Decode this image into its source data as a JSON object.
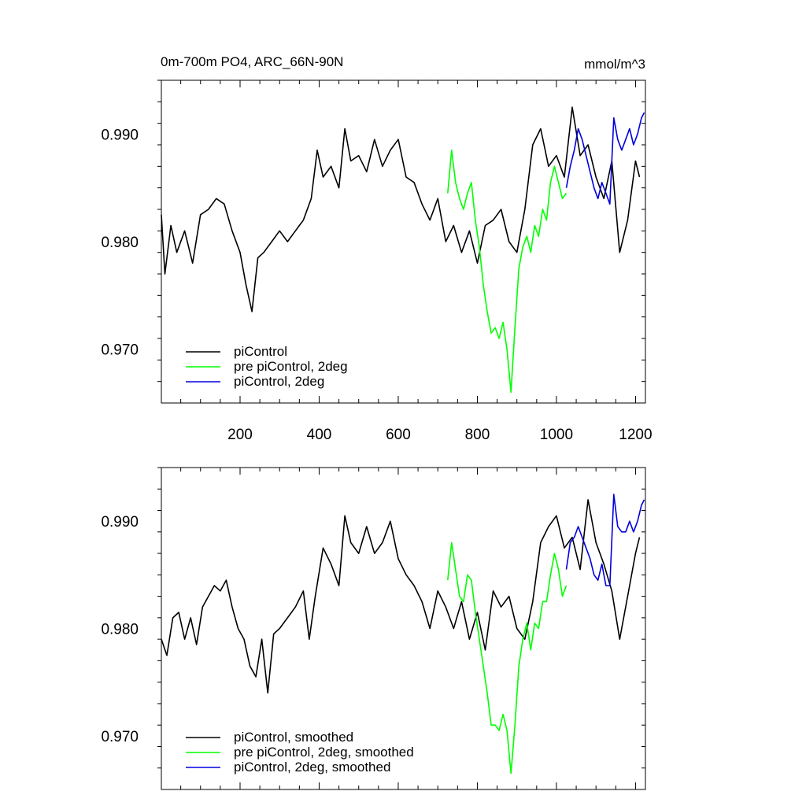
{
  "figure": {
    "title_left": "0m-700m PO4, ARC_66N-90N",
    "title_right": "mmol/m^3"
  },
  "chart_data": [
    {
      "type": "line",
      "xlim": [
        1,
        1225
      ],
      "ylim": [
        0.965,
        0.995
      ],
      "xticks": [
        200,
        400,
        600,
        800,
        1000,
        1200
      ],
      "xtick_labels": [
        "200",
        "400",
        "600",
        "800",
        "1000",
        "1200"
      ],
      "yticks": [
        0.97,
        0.98,
        0.99
      ],
      "ytick_labels": [
        "0.970",
        "0.980",
        "0.990"
      ],
      "grid": false,
      "legend_position": "bottom-left",
      "series": [
        {
          "name": "piControl",
          "color": "#000000",
          "x": [
            1,
            10,
            25,
            40,
            60,
            80,
            100,
            120,
            140,
            160,
            180,
            200,
            215,
            230,
            245,
            260,
            280,
            300,
            320,
            340,
            360,
            380,
            395,
            410,
            430,
            450,
            465,
            480,
            500,
            520,
            540,
            560,
            580,
            600,
            620,
            640,
            660,
            680,
            700,
            720,
            740,
            760,
            780,
            800,
            820,
            840,
            860,
            880,
            900,
            920,
            940,
            960,
            980,
            1000,
            1020,
            1040,
            1060,
            1080,
            1100,
            1120,
            1140,
            1160,
            1180,
            1200,
            1210
          ],
          "y": [
            0.9825,
            0.977,
            0.9815,
            0.979,
            0.981,
            0.978,
            0.9825,
            0.983,
            0.984,
            0.9835,
            0.981,
            0.979,
            0.976,
            0.9735,
            0.9785,
            0.979,
            0.98,
            0.981,
            0.98,
            0.981,
            0.982,
            0.984,
            0.9885,
            0.986,
            0.987,
            0.985,
            0.9905,
            0.9875,
            0.988,
            0.9865,
            0.9895,
            0.987,
            0.9885,
            0.9895,
            0.986,
            0.9855,
            0.9835,
            0.982,
            0.984,
            0.98,
            0.9815,
            0.979,
            0.981,
            0.978,
            0.9815,
            0.982,
            0.983,
            0.98,
            0.979,
            0.983,
            0.989,
            0.9905,
            0.987,
            0.988,
            0.986,
            0.9925,
            0.988,
            0.989,
            0.986,
            0.984,
            0.9875,
            0.979,
            0.982,
            0.9875,
            0.986
          ]
        },
        {
          "name": "pre piControl, 2deg",
          "color": "#00ff00",
          "x": [
            725,
            735,
            745,
            755,
            765,
            775,
            785,
            795,
            805,
            815,
            825,
            835,
            845,
            855,
            865,
            875,
            885,
            895,
            905,
            915,
            925,
            935,
            945,
            955,
            965,
            975,
            985,
            995,
            1005,
            1015,
            1025
          ],
          "y": [
            0.9845,
            0.9885,
            0.9855,
            0.984,
            0.983,
            0.9845,
            0.9855,
            0.982,
            0.9795,
            0.976,
            0.9735,
            0.9715,
            0.972,
            0.971,
            0.9725,
            0.97,
            0.966,
            0.972,
            0.9775,
            0.9795,
            0.9805,
            0.979,
            0.9815,
            0.9805,
            0.983,
            0.982,
            0.9855,
            0.987,
            0.9855,
            0.984,
            0.9845
          ]
        },
        {
          "name": "piControl, 2deg",
          "color": "#0000dd",
          "x": [
            1025,
            1035,
            1045,
            1055,
            1065,
            1075,
            1085,
            1095,
            1105,
            1115,
            1125,
            1135,
            1145,
            1155,
            1165,
            1175,
            1185,
            1195,
            1205,
            1215,
            1222
          ],
          "y": [
            0.985,
            0.987,
            0.9885,
            0.9905,
            0.9895,
            0.988,
            0.9865,
            0.985,
            0.984,
            0.9855,
            0.9845,
            0.9835,
            0.9915,
            0.9895,
            0.9885,
            0.9895,
            0.9905,
            0.989,
            0.99,
            0.9915,
            0.992
          ]
        }
      ]
    },
    {
      "type": "line",
      "xlim": [
        1,
        1225
      ],
      "ylim": [
        0.965,
        0.995
      ],
      "xticks": [
        200,
        400,
        600,
        800,
        1000,
        1200
      ],
      "xtick_labels": [
        "",
        "",
        "",
        "",
        "",
        ""
      ],
      "yticks": [
        0.97,
        0.98,
        0.99
      ],
      "ytick_labels": [
        "0.970",
        "0.980",
        "0.990"
      ],
      "grid": false,
      "legend_position": "bottom-left",
      "series": [
        {
          "name": "piControl, smoothed",
          "color": "#000000",
          "x": [
            1,
            15,
            30,
            45,
            60,
            75,
            90,
            105,
            120,
            135,
            150,
            165,
            180,
            195,
            210,
            225,
            240,
            255,
            270,
            285,
            300,
            320,
            340,
            360,
            375,
            390,
            410,
            430,
            450,
            465,
            480,
            500,
            520,
            540,
            560,
            580,
            600,
            620,
            640,
            660,
            680,
            700,
            720,
            740,
            760,
            780,
            800,
            820,
            840,
            860,
            880,
            900,
            920,
            940,
            960,
            980,
            1000,
            1020,
            1040,
            1060,
            1080,
            1100,
            1120,
            1140,
            1160,
            1180,
            1200,
            1210
          ],
          "y": [
            0.979,
            0.9775,
            0.981,
            0.9815,
            0.979,
            0.981,
            0.9785,
            0.982,
            0.983,
            0.984,
            0.9835,
            0.9845,
            0.982,
            0.98,
            0.979,
            0.9765,
            0.9755,
            0.979,
            0.974,
            0.9795,
            0.98,
            0.981,
            0.982,
            0.9835,
            0.979,
            0.983,
            0.9875,
            0.986,
            0.984,
            0.9905,
            0.988,
            0.987,
            0.9895,
            0.987,
            0.988,
            0.99,
            0.9865,
            0.985,
            0.984,
            0.9825,
            0.98,
            0.9835,
            0.982,
            0.98,
            0.9825,
            0.979,
            0.9815,
            0.978,
            0.9835,
            0.982,
            0.983,
            0.98,
            0.979,
            0.9825,
            0.988,
            0.9895,
            0.9905,
            0.9875,
            0.9885,
            0.9855,
            0.992,
            0.988,
            0.986,
            0.9835,
            0.979,
            0.983,
            0.987,
            0.9885
          ]
        },
        {
          "name": "pre piControl, 2deg, smoothed",
          "color": "#00ff00",
          "x": [
            725,
            735,
            745,
            755,
            765,
            775,
            785,
            795,
            805,
            815,
            825,
            835,
            845,
            855,
            865,
            875,
            885,
            895,
            905,
            915,
            925,
            935,
            945,
            955,
            965,
            975,
            985,
            995,
            1005,
            1015,
            1025
          ],
          "y": [
            0.9845,
            0.988,
            0.9855,
            0.983,
            0.9825,
            0.985,
            0.9845,
            0.9815,
            0.979,
            0.9765,
            0.974,
            0.971,
            0.971,
            0.9705,
            0.972,
            0.9705,
            0.9665,
            0.971,
            0.9765,
            0.979,
            0.9805,
            0.978,
            0.9805,
            0.98,
            0.9825,
            0.9825,
            0.985,
            0.987,
            0.9855,
            0.983,
            0.984
          ]
        },
        {
          "name": "piControl, 2deg, smoothed",
          "color": "#0000dd",
          "x": [
            1025,
            1035,
            1045,
            1055,
            1065,
            1075,
            1085,
            1095,
            1105,
            1115,
            1125,
            1135,
            1145,
            1155,
            1165,
            1175,
            1185,
            1195,
            1205,
            1215,
            1222
          ],
          "y": [
            0.9855,
            0.988,
            0.9885,
            0.9895,
            0.9885,
            0.9875,
            0.9865,
            0.985,
            0.9845,
            0.986,
            0.984,
            0.984,
            0.9925,
            0.9895,
            0.989,
            0.989,
            0.99,
            0.989,
            0.99,
            0.9915,
            0.992
          ]
        }
      ]
    }
  ]
}
